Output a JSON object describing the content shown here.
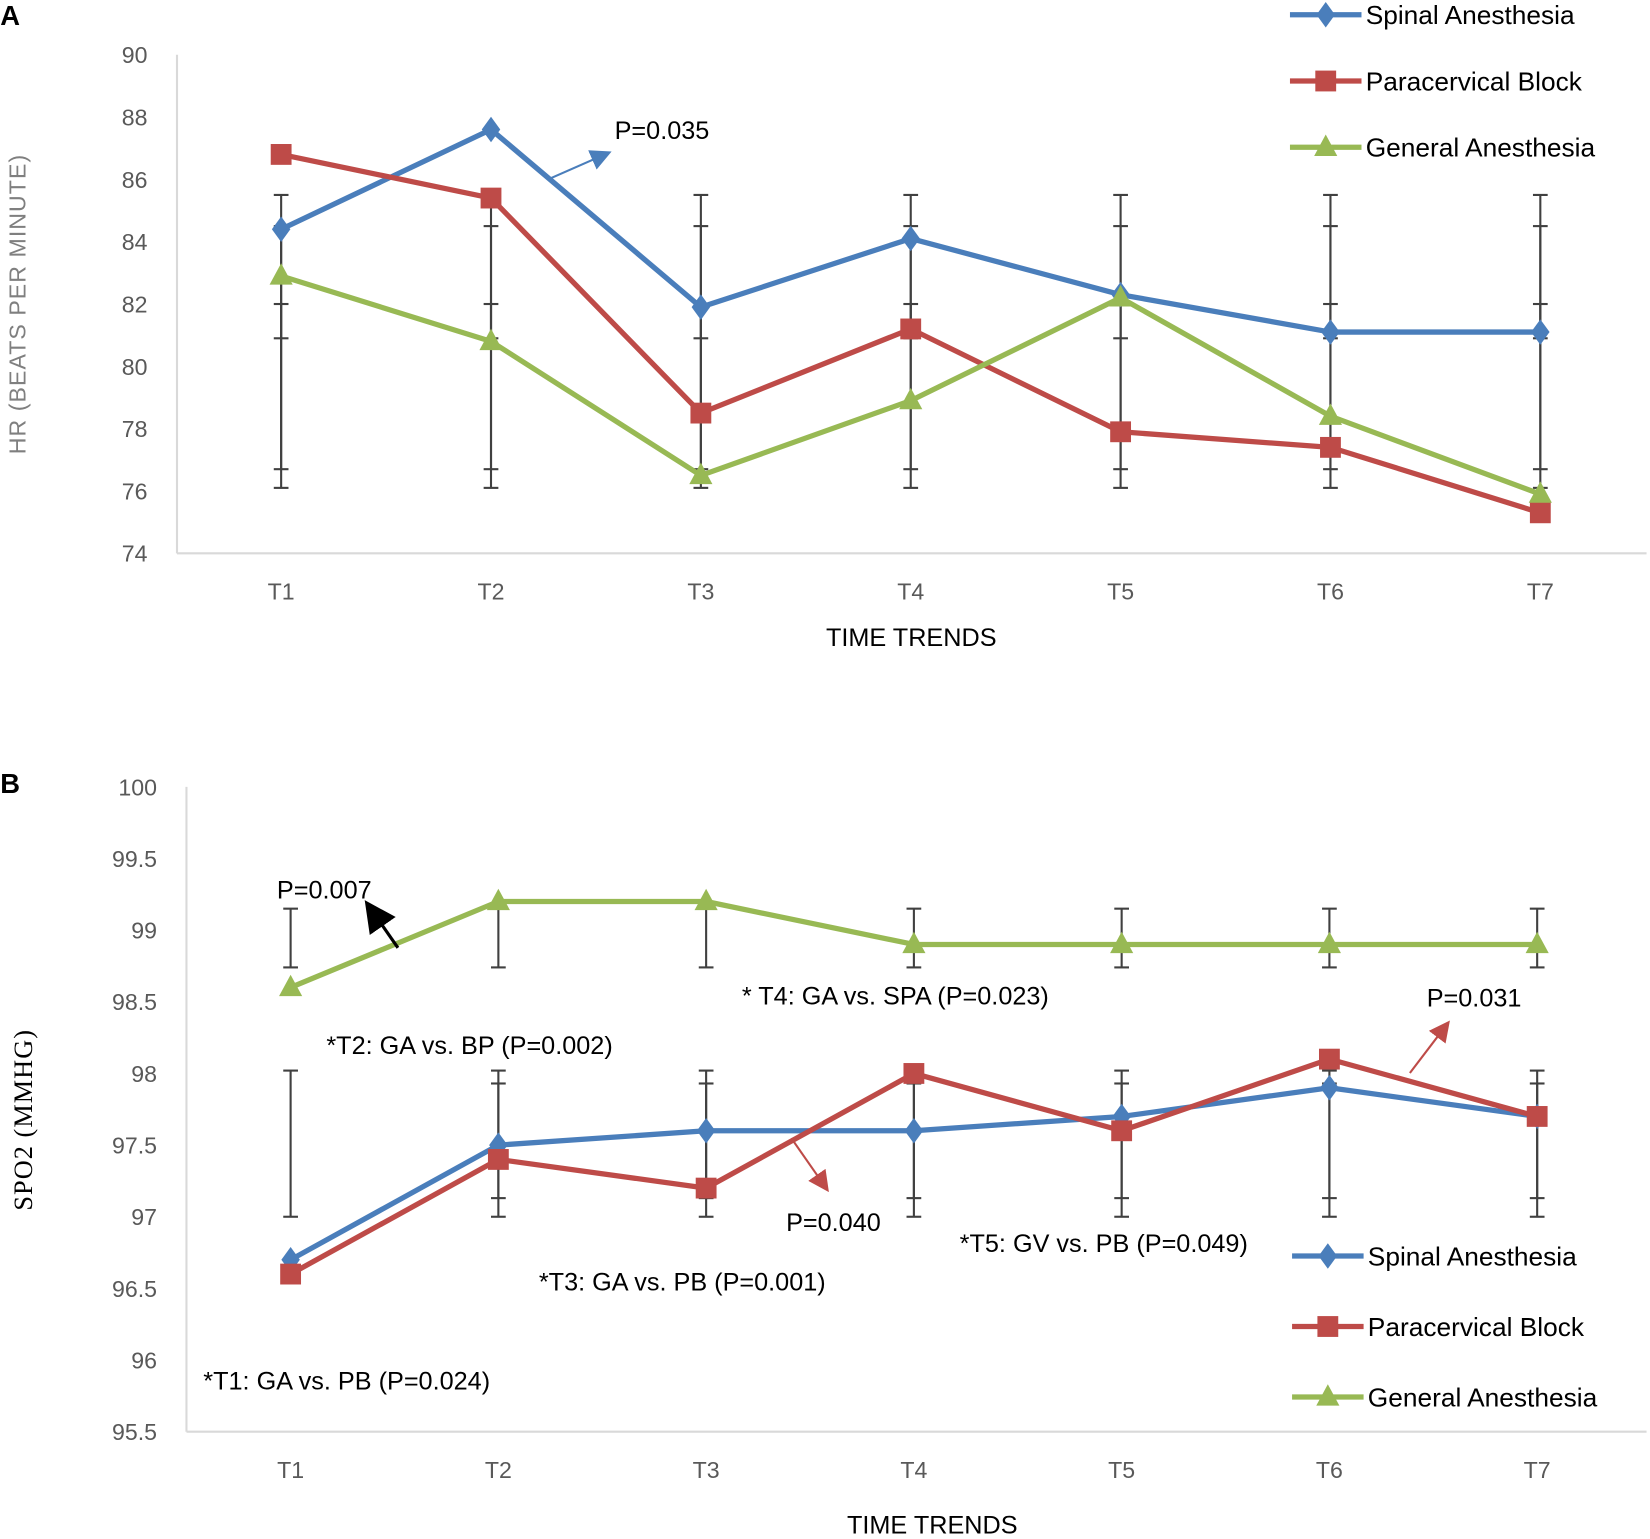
{
  "colors": {
    "spinal": "#4a7ebb",
    "paracervical": "#be4b48",
    "general": "#98b954",
    "error_bar": "#404040",
    "axis": "#d9d9d9"
  },
  "chart_data": [
    {
      "panel_label": "A",
      "type": "line",
      "xlabel": "TIME TRENDS",
      "ylabel": "HR (BEATS PER MINUTE)",
      "ylim": [
        74,
        90
      ],
      "yticks": [
        "74",
        "76",
        "78",
        "80",
        "82",
        "84",
        "86",
        "88",
        "90"
      ],
      "categories": [
        "T1",
        "T2",
        "T3",
        "T4",
        "T5",
        "T6",
        "T7"
      ],
      "legend_position": "top-right",
      "series": [
        {
          "name": "Spinal Anesthesia",
          "marker": "diamond",
          "values": [
            84.4,
            87.6,
            81.9,
            84.1,
            82.3,
            81.1,
            81.1
          ]
        },
        {
          "name": "Paracervical Block",
          "marker": "square",
          "values": [
            86.8,
            85.4,
            78.5,
            81.2,
            77.9,
            77.4,
            75.3
          ]
        },
        {
          "name": "General Anesthesia",
          "marker": "triangle",
          "values": [
            82.9,
            80.8,
            76.5,
            78.9,
            82.2,
            78.4,
            75.9
          ]
        }
      ],
      "error_bars": [
        [
          76.1,
          85.5
        ],
        [
          76.7,
          84.5
        ],
        [
          80.9,
          82.0
        ]
      ],
      "annotations": [
        {
          "text": "P=0.035",
          "color": "#4a7ebb"
        }
      ]
    },
    {
      "panel_label": "B",
      "type": "line",
      "xlabel": "TIME TRENDS",
      "ylabel": "SPO2 (MMHG)",
      "ylim": [
        95.5,
        100
      ],
      "yticks": [
        "95.5",
        "96",
        "96.5",
        "97",
        "97.5",
        "98",
        "98.5",
        "99",
        "99.5",
        "100"
      ],
      "categories": [
        "T1",
        "T2",
        "T3",
        "T4",
        "T5",
        "T6",
        "T7"
      ],
      "legend_position": "bottom-right",
      "series": [
        {
          "name": "Spinal Anesthesia",
          "marker": "diamond",
          "values": [
            96.7,
            97.5,
            97.6,
            97.6,
            97.7,
            97.9,
            97.7
          ]
        },
        {
          "name": "Paracervical Block",
          "marker": "square",
          "values": [
            96.6,
            97.4,
            97.2,
            98.0,
            97.6,
            98.1,
            97.7
          ]
        },
        {
          "name": "General Anesthesia",
          "marker": "triangle",
          "values": [
            98.6,
            99.2,
            99.2,
            98.9,
            98.9,
            98.9,
            98.9
          ]
        }
      ],
      "error_bars": [
        [
          98.74,
          99.15
        ],
        [
          97.0,
          98.02
        ],
        [
          97.13,
          97.93
        ]
      ],
      "annotations": [
        {
          "text": "P=0.007",
          "color": "#000000"
        },
        {
          "text": "* T4: GA vs. SPA (P=0.023)",
          "color": "#000000"
        },
        {
          "text": "P=0.031",
          "color": "#be4b48"
        },
        {
          "text": "*T2: GA vs. BP (P=0.002)",
          "color": "#000000"
        },
        {
          "text": "P=0.040",
          "color": "#be4b48"
        },
        {
          "text": "*T5: GV vs. PB  (P=0.049)",
          "color": "#000000"
        },
        {
          "text": "*T3: GA vs. PB (P=0.001)",
          "color": "#000000"
        },
        {
          "text": "*T1: GA vs. PB (P=0.024)",
          "color": "#000000"
        }
      ]
    }
  ]
}
